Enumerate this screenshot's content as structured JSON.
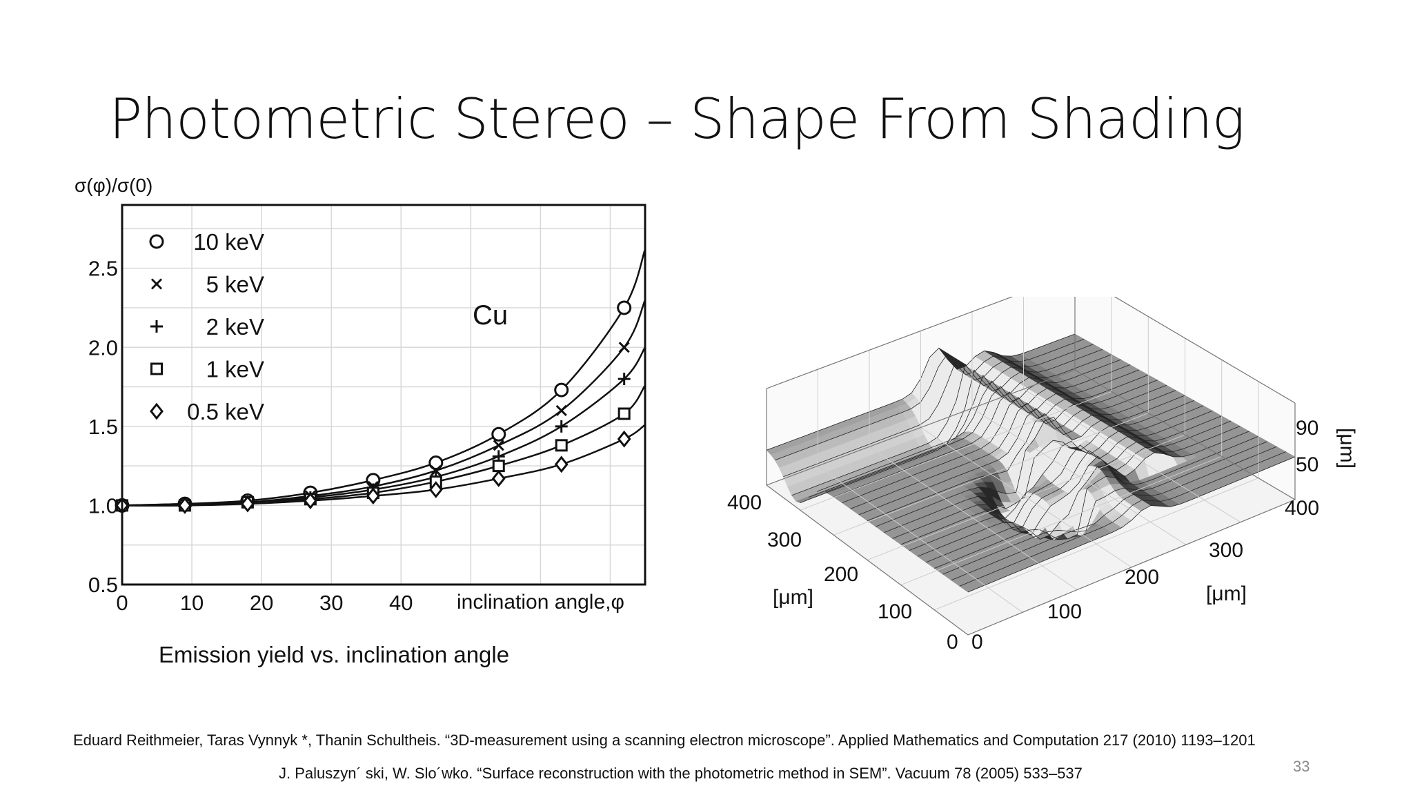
{
  "slide": {
    "title": "Photometric Stereo – Shape From Shading",
    "caption": "Emission yield vs. inclination angle",
    "page_number": "33",
    "references": [
      "Eduard Reithmeier, Taras Vynnyk *, Thanin Schultheis. “3D-measurement using a scanning electron microscope”. Applied Mathematics and Computation 217 (2010) 1193–1201",
      "J. Paluszyn´ ski, W. Slo´wko. “Surface reconstruction with the photometric method in SEM”. Vacuum 78 (2005) 533–537"
    ]
  },
  "chart_data": {
    "type": "line",
    "title": "",
    "ylabel": "σ(φ)/σ(0)",
    "xlabel": "inclination angle,φ",
    "annotation": "Cu",
    "xlim": [
      0,
      75
    ],
    "ylim": [
      0.5,
      2.9
    ],
    "xticks": [
      0,
      10,
      20,
      30,
      40
    ],
    "yticks": [
      0.5,
      1.0,
      1.5,
      2.0,
      2.5
    ],
    "ytick_labels": [
      "0.5",
      "1.0",
      "1.5",
      "2.0",
      "2.5"
    ],
    "grid": true,
    "legend": "top-left",
    "x": [
      0,
      9,
      18,
      27,
      36,
      45,
      54,
      63,
      72
    ],
    "series": [
      {
        "name": "10 keV",
        "marker": "circle",
        "values": [
          1.0,
          1.01,
          1.03,
          1.08,
          1.16,
          1.27,
          1.45,
          1.73,
          2.25
        ],
        "curve_end": 2.62
      },
      {
        "name": "5 keV",
        "marker": "x",
        "values": [
          1.0,
          1.01,
          1.02,
          1.06,
          1.12,
          1.22,
          1.38,
          1.6,
          2.0
        ],
        "curve_end": 2.3
      },
      {
        "name": "2 keV",
        "marker": "plus",
        "values": [
          1.0,
          1.0,
          1.02,
          1.05,
          1.1,
          1.18,
          1.31,
          1.5,
          1.8
        ],
        "curve_end": 2.0
      },
      {
        "name": "1 keV",
        "marker": "square",
        "values": [
          1.0,
          1.0,
          1.02,
          1.04,
          1.08,
          1.15,
          1.25,
          1.38,
          1.58
        ],
        "curve_end": 1.76
      },
      {
        "name": "0.5 keV",
        "marker": "diamond",
        "values": [
          1.0,
          1.0,
          1.01,
          1.03,
          1.06,
          1.1,
          1.17,
          1.26,
          1.42
        ],
        "curve_end": 1.51
      }
    ]
  },
  "surface_plot": {
    "x_ticks": [
      "0",
      "100",
      "200",
      "300",
      "400"
    ],
    "y_ticks": [
      "0",
      "100",
      "200",
      "300",
      "400"
    ],
    "z_ticks": [
      "90",
      "50"
    ],
    "x_unit": "[μm]",
    "y_unit": "[μm]",
    "z_unit": "[μm]"
  }
}
